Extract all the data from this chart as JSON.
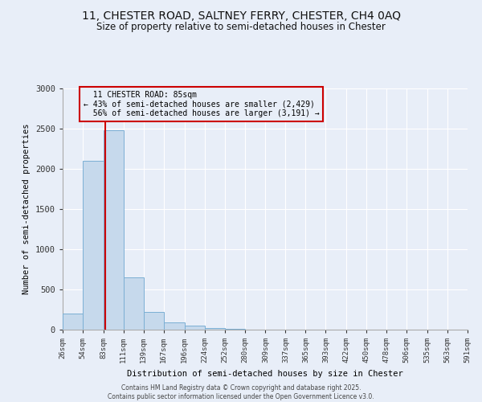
{
  "title": "11, CHESTER ROAD, SALTNEY FERRY, CHESTER, CH4 0AQ",
  "subtitle": "Size of property relative to semi-detached houses in Chester",
  "xlabel": "Distribution of semi-detached houses by size in Chester",
  "ylabel": "Number of semi-detached properties",
  "property_size": 85,
  "property_label": "11 CHESTER ROAD: 85sqm",
  "pct_smaller": 43,
  "pct_larger": 56,
  "n_smaller": 2429,
  "n_larger": 3191,
  "bin_edges": [
    26,
    54,
    83,
    111,
    139,
    167,
    196,
    224,
    252,
    280,
    309,
    337,
    365,
    393,
    422,
    450,
    478,
    506,
    535,
    563,
    591
  ],
  "bar_heights": [
    200,
    2100,
    2480,
    650,
    220,
    90,
    50,
    20,
    10,
    5,
    2,
    1,
    1,
    0,
    0,
    0,
    0,
    0,
    0,
    0
  ],
  "bar_color": "#c6d9ec",
  "bar_edge_color": "#7bafd4",
  "vline_color": "#cc0000",
  "annotation_border_color": "#cc0000",
  "background_color": "#e8eef8",
  "grid_color": "#ffffff",
  "ylim": [
    0,
    3000
  ],
  "yticks": [
    0,
    500,
    1000,
    1500,
    2000,
    2500,
    3000
  ],
  "footer_line1": "Contains HM Land Registry data © Crown copyright and database right 2025.",
  "footer_line2": "Contains public sector information licensed under the Open Government Licence v3.0."
}
